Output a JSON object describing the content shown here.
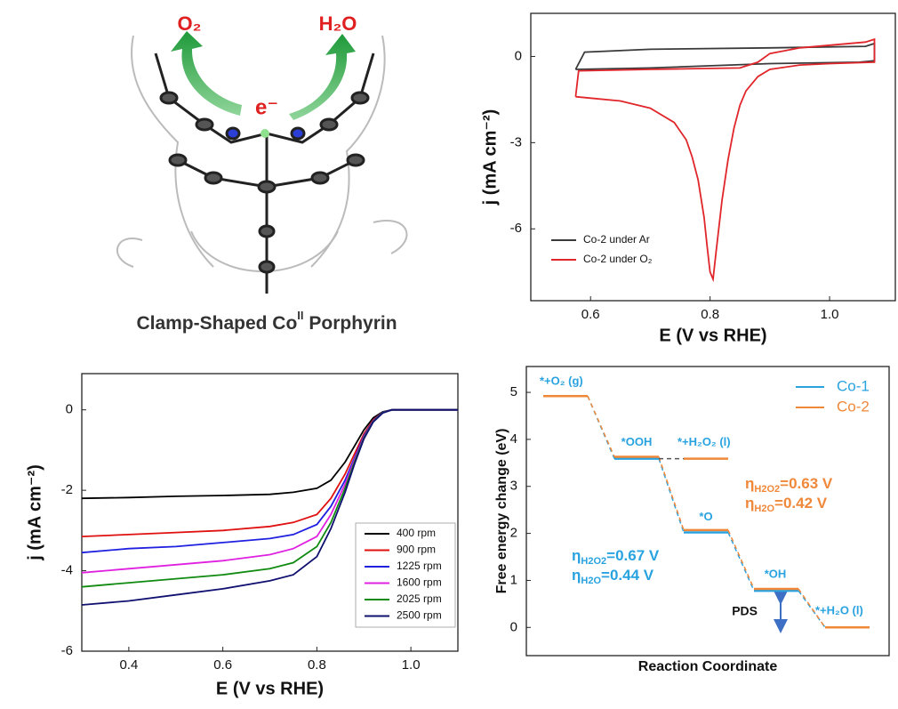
{
  "illustration": {
    "labels": [
      "O₂",
      "H₂O",
      "e⁻"
    ],
    "caption": [
      "Clamp-Shaped Co",
      "II",
      " Porphyrin"
    ]
  },
  "chart_data": [
    {
      "type": "line",
      "xlabel": "E (V vs RHE)",
      "ylabel": "j (mA cm⁻²)",
      "xlim": [
        0.5,
        1.11
      ],
      "xticks": [
        0.6,
        0.8,
        {
          "value": 1,
          "label": "1.0"
        }
      ],
      "ylim": [
        -8.5,
        1.5
      ],
      "yticks": [
        0,
        -3,
        -6
      ],
      "legend": "lower left",
      "series": [
        {
          "name": "Co-2 under Ar",
          "color": "#3a3a3a",
          "x": [
            0.575,
            0.59,
            0.7,
            0.9,
            1.06,
            1.075,
            1.075,
            1.05,
            0.9,
            0.7,
            0.575
          ],
          "values": [
            -0.45,
            0.15,
            0.25,
            0.3,
            0.35,
            0.45,
            -0.15,
            -0.2,
            -0.25,
            -0.4,
            -0.45
          ]
        },
        {
          "name": "Co-2 under O₂",
          "color": "#e0262b",
          "x": [
            0.575,
            0.58,
            0.7,
            0.85,
            0.88,
            0.9,
            0.95,
            1.06,
            1.075,
            1.075,
            1.0,
            0.95,
            0.9,
            0.88,
            0.86,
            0.85,
            0.84,
            0.83,
            0.82,
            0.81,
            0.805,
            0.8,
            0.795,
            0.79,
            0.78,
            0.77,
            0.76,
            0.74,
            0.7,
            0.65,
            0.6,
            0.575
          ],
          "values": [
            -1.4,
            -0.5,
            -0.45,
            -0.4,
            -0.2,
            0.1,
            0.3,
            0.5,
            0.6,
            -0.2,
            -0.25,
            -0.3,
            -0.45,
            -0.7,
            -1.2,
            -1.7,
            -2.5,
            -3.6,
            -5.0,
            -6.8,
            -7.75,
            -7.5,
            -6.6,
            -5.6,
            -4.3,
            -3.5,
            -2.9,
            -2.3,
            -1.8,
            -1.55,
            -1.45,
            -1.4
          ]
        }
      ]
    },
    {
      "type": "line",
      "xlabel": "E (V vs RHE)",
      "ylabel": "j (mA cm⁻²)",
      "xlim": [
        0.3,
        1.1
      ],
      "xticks": [
        0.4,
        0.6,
        0.8,
        {
          "value": 1,
          "label": "1.0"
        }
      ],
      "ylim": [
        -6,
        0.9
      ],
      "yticks": [
        0,
        -2,
        -4,
        -6
      ],
      "legend": "lower right",
      "x": [
        0.3,
        0.4,
        0.5,
        0.6,
        0.7,
        0.75,
        0.8,
        0.83,
        0.86,
        0.88,
        0.9,
        0.92,
        0.94,
        0.96,
        1.0,
        1.1
      ],
      "series": [
        {
          "name": "400 rpm",
          "color": "#000000",
          "values": [
            -2.2,
            -2.18,
            -2.15,
            -2.13,
            -2.1,
            -2.05,
            -1.95,
            -1.75,
            -1.3,
            -0.9,
            -0.5,
            -0.2,
            -0.05,
            0,
            0,
            0
          ]
        },
        {
          "name": "900 rpm",
          "color": "#e01010",
          "values": [
            -3.15,
            -3.1,
            -3.05,
            -3.0,
            -2.9,
            -2.8,
            -2.6,
            -2.2,
            -1.6,
            -1.1,
            -0.6,
            -0.25,
            -0.06,
            0,
            0,
            0
          ]
        },
        {
          "name": "1225 rpm",
          "color": "#2020e0",
          "values": [
            -3.55,
            -3.45,
            -3.4,
            -3.3,
            -3.2,
            -3.1,
            -2.85,
            -2.4,
            -1.75,
            -1.2,
            -0.65,
            -0.27,
            -0.06,
            0,
            0,
            0
          ]
        },
        {
          "name": "1600 rpm",
          "color": "#e020e0",
          "values": [
            -4.05,
            -3.95,
            -3.85,
            -3.75,
            -3.6,
            -3.45,
            -3.15,
            -2.6,
            -1.85,
            -1.25,
            -0.68,
            -0.28,
            -0.07,
            0,
            0,
            0
          ]
        },
        {
          "name": "2025 rpm",
          "color": "#108a10",
          "values": [
            -4.4,
            -4.3,
            -4.2,
            -4.1,
            -3.95,
            -3.8,
            -3.4,
            -2.8,
            -1.95,
            -1.3,
            -0.7,
            -0.29,
            -0.07,
            0,
            0,
            0
          ]
        },
        {
          "name": "2500 rpm",
          "color": "#101070",
          "values": [
            -4.85,
            -4.75,
            -4.6,
            -4.45,
            -4.25,
            -4.1,
            -3.65,
            -2.95,
            -2.05,
            -1.35,
            -0.72,
            -0.3,
            -0.08,
            0,
            0,
            0
          ]
        }
      ]
    },
    {
      "type": "energy",
      "xlabel": "Reaction Coordinate",
      "ylabel": "Free energy change (eV)",
      "ylim": [
        -0.6,
        5.55
      ],
      "yticks": [
        0,
        1,
        2,
        3,
        4,
        5
      ],
      "legend": "upper right",
      "categories": [
        "*+O₂ (g)",
        "*OOH",
        "*O",
        "*OH",
        "*+H₂O (l)"
      ],
      "series": [
        {
          "name": "Co-1",
          "color": "#29a3e0",
          "values": [
            4.92,
            3.59,
            2.02,
            0.78,
            0
          ]
        },
        {
          "name": "Co-2",
          "color": "#f0883a",
          "values": [
            4.92,
            3.63,
            2.07,
            0.82,
            0
          ]
        }
      ],
      "branch": {
        "label": "*+H₂O₂ (l)",
        "value": 3.59
      },
      "pds": "PDS",
      "annotations": [
        {
          "symbol": "η",
          "sub": "H2O2",
          "text": "=0.63 V",
          "color": "#f0883a"
        },
        {
          "symbol": "η",
          "sub": "H2O",
          "text": "=0.42 V",
          "color": "#f0883a"
        },
        {
          "symbol": "η",
          "sub": "H2O2",
          "text": "=0.67 V",
          "color": "#29a3e0"
        },
        {
          "symbol": "η",
          "sub": "H2O",
          "text": "=0.44 V",
          "color": "#29a3e0"
        }
      ]
    }
  ]
}
